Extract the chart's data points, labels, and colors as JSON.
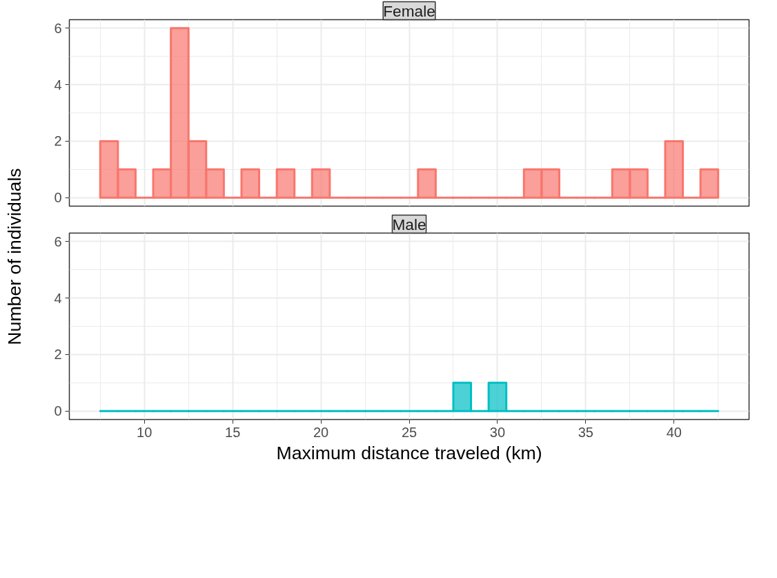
{
  "chart_data": [
    {
      "type": "histogram",
      "title": "Female",
      "ylabel": "Number of individuals",
      "color": "#f8766d",
      "bins": [
        7.5,
        8.5,
        9.5,
        10.5,
        11.5,
        12.5,
        13.5,
        14.5,
        15.5,
        16.5,
        17.5,
        18.5,
        19.5,
        20.5,
        21.5,
        22.5,
        23.5,
        24.5,
        25.5,
        26.5,
        27.5,
        28.5,
        29.5,
        30.5,
        31.5,
        32.5,
        33.5,
        34.5,
        35.5,
        36.5,
        37.5,
        38.5,
        39.5,
        40.5,
        41.5,
        42.5
      ],
      "values": [
        2,
        1,
        0,
        1,
        6,
        2,
        1,
        0,
        1,
        0,
        1,
        0,
        1,
        0,
        0,
        0,
        0,
        0,
        1,
        0,
        0,
        0,
        0,
        0,
        1,
        1,
        0,
        0,
        0,
        1,
        1,
        0,
        2,
        0,
        1
      ],
      "xlim": [
        5.75,
        44.25
      ],
      "ylim": [
        -0.3,
        6.3
      ],
      "xticks": [
        10,
        15,
        20,
        25,
        30,
        35,
        40
      ],
      "yticks": [
        0,
        2,
        4,
        6
      ],
      "grid": true,
      "tick_labels": "y"
    },
    {
      "type": "histogram",
      "title": "Male",
      "xlabel": "Maximum distance traveled (km)",
      "color": "#00bfc4",
      "bins": [
        7.5,
        8.5,
        9.5,
        10.5,
        11.5,
        12.5,
        13.5,
        14.5,
        15.5,
        16.5,
        17.5,
        18.5,
        19.5,
        20.5,
        21.5,
        22.5,
        23.5,
        24.5,
        25.5,
        26.5,
        27.5,
        28.5,
        29.5,
        30.5,
        31.5,
        32.5,
        33.5,
        34.5,
        35.5,
        36.5,
        37.5,
        38.5,
        39.5,
        40.5,
        41.5,
        42.5
      ],
      "values": [
        0,
        0,
        0,
        0,
        0,
        0,
        0,
        0,
        0,
        0,
        0,
        0,
        0,
        0,
        0,
        0,
        0,
        0,
        0,
        0,
        1,
        0,
        1,
        0,
        0,
        0,
        0,
        0,
        0,
        0,
        0,
        0,
        0,
        0,
        0
      ],
      "xlim": [
        5.75,
        44.25
      ],
      "ylim": [
        -0.3,
        6.3
      ],
      "xticks": [
        10,
        15,
        20,
        25,
        30,
        35,
        40
      ],
      "yticks": [
        0,
        2,
        4,
        6
      ],
      "grid": true
    }
  ]
}
